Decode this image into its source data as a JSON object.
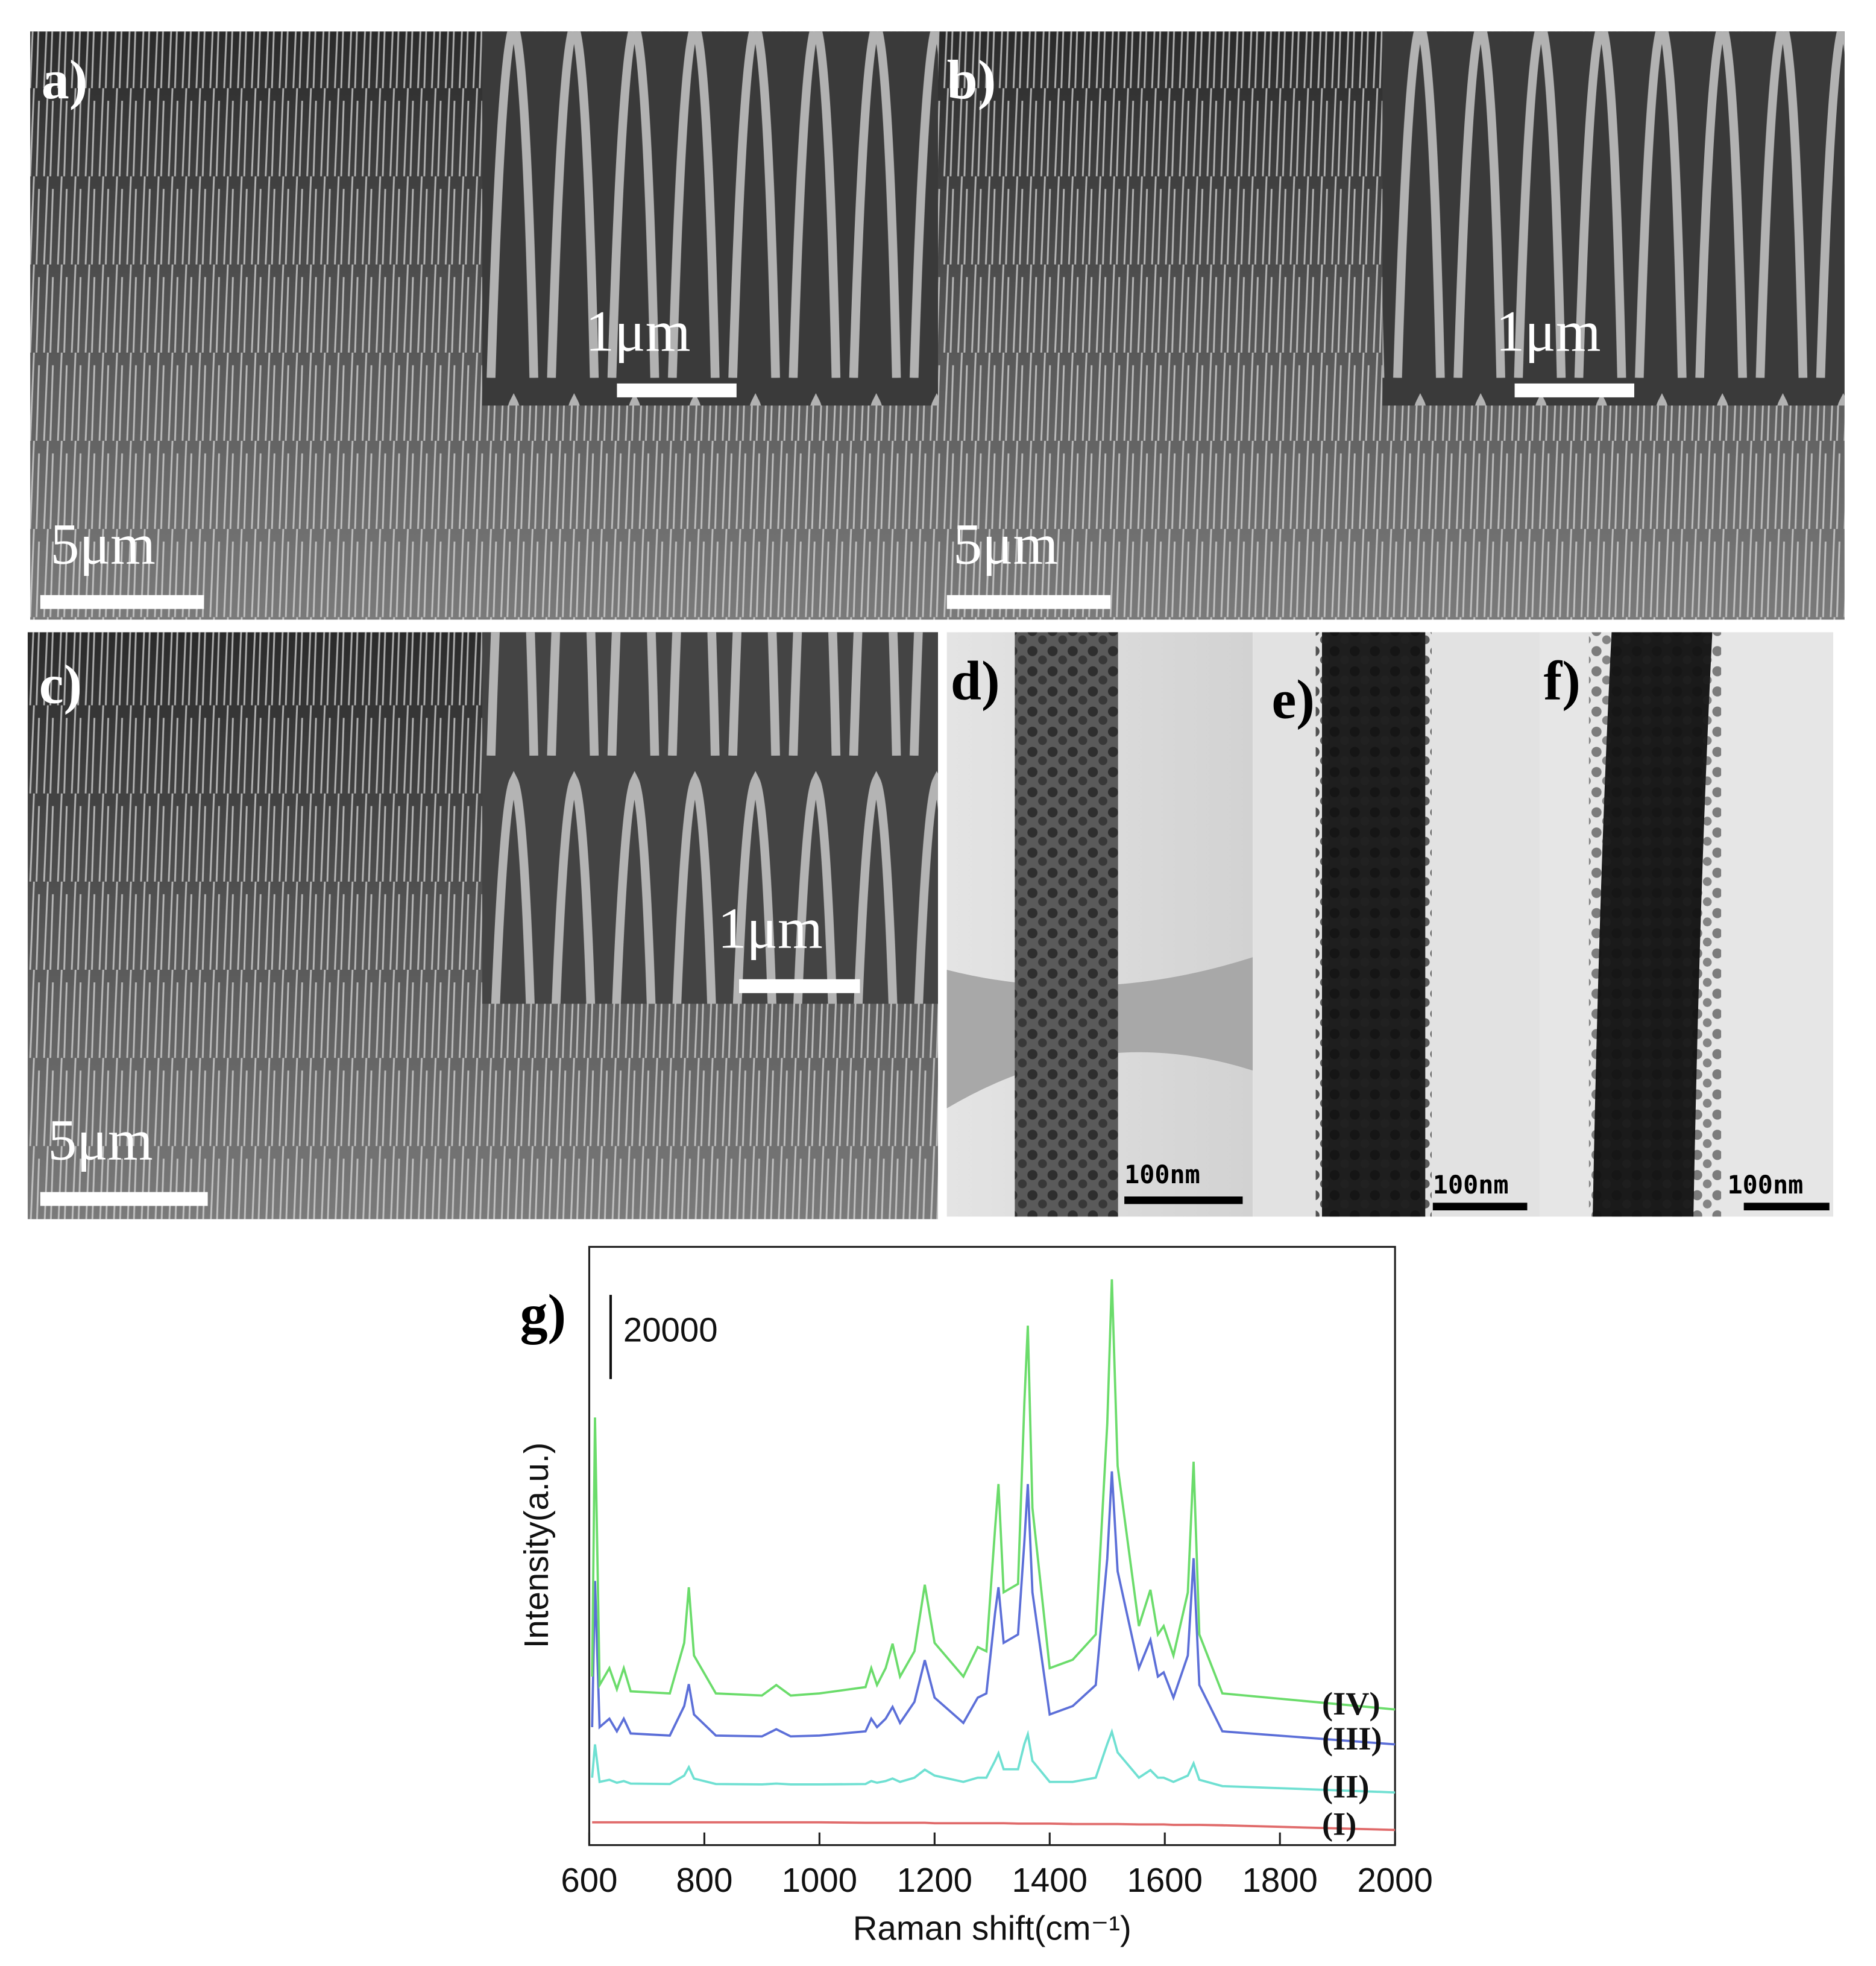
{
  "panels": [
    {
      "label": "a)",
      "scale_bars": [
        "5μm",
        "1μm"
      ]
    },
    {
      "label": "b)",
      "scale_bars": [
        "5μm",
        "1μm"
      ]
    },
    {
      "label": "c)",
      "scale_bars": [
        "5μm",
        "1μm"
      ]
    },
    {
      "label": "d)",
      "scale_bars": [
        "100nm"
      ]
    },
    {
      "label": "e)",
      "scale_bars": [
        "100nm"
      ]
    },
    {
      "label": "f)",
      "scale_bars": [
        "100nm"
      ]
    }
  ],
  "chart_data": {
    "type": "line",
    "panel_label": "g)",
    "x_label": "Raman shift(cm⁻¹)",
    "y_label": "Intensity(a.u.)",
    "scale_bar": 20000,
    "xlim": [
      600,
      2000
    ],
    "xticks": [
      600,
      800,
      1000,
      1200,
      1400,
      1600,
      1800,
      2000
    ],
    "ylim": [
      0,
      142000
    ],
    "x": [
      605,
      610,
      618,
      635,
      648,
      660,
      672,
      740,
      765,
      773,
      782,
      820,
      900,
      925,
      950,
      1000,
      1080,
      1090,
      1100,
      1115,
      1127,
      1140,
      1165,
      1183,
      1200,
      1250,
      1275,
      1290,
      1305,
      1311,
      1320,
      1345,
      1356,
      1362,
      1370,
      1400,
      1440,
      1480,
      1500,
      1508,
      1518,
      1555,
      1575,
      1588,
      1598,
      1615,
      1640,
      1650,
      1660,
      1700,
      2000
    ],
    "series": [
      {
        "name": "(I)",
        "color": "#e06a6a",
        "values": [
          5400,
          5400,
          5400,
          5400,
          5400,
          5400,
          5400,
          5400,
          5400,
          5400,
          5400,
          5400,
          5400,
          5400,
          5400,
          5400,
          5300,
          5300,
          5300,
          5300,
          5300,
          5300,
          5300,
          5300,
          5200,
          5200,
          5200,
          5200,
          5200,
          5200,
          5200,
          5100,
          5100,
          5100,
          5100,
          5100,
          5000,
          5000,
          5000,
          5000,
          5000,
          4900,
          4900,
          4900,
          4900,
          4800,
          4800,
          4800,
          4800,
          4700,
          3600
        ]
      },
      {
        "name": "(II)",
        "color": "#6fe0d2",
        "values": [
          16000,
          23900,
          15000,
          15500,
          14800,
          15200,
          14600,
          14500,
          16500,
          18500,
          15800,
          14500,
          14400,
          14600,
          14400,
          14400,
          14500,
          15200,
          14800,
          15200,
          15800,
          15000,
          16000,
          17900,
          16500,
          15000,
          16000,
          16000,
          20000,
          21800,
          18000,
          18000,
          24000,
          26300,
          20000,
          15000,
          15000,
          16000,
          24000,
          26900,
          22000,
          16000,
          17800,
          16000,
          16000,
          15000,
          16500,
          19400,
          15500,
          14000,
          12500
        ]
      },
      {
        "name": "(III)",
        "color": "#5c6fd8",
        "values": [
          28000,
          62700,
          28000,
          30000,
          27000,
          30000,
          26500,
          26000,
          33000,
          38200,
          31000,
          26000,
          25800,
          27500,
          25800,
          26000,
          27000,
          30000,
          28000,
          30000,
          32800,
          29000,
          34000,
          43900,
          35000,
          29000,
          35000,
          36000,
          55000,
          61200,
          48000,
          50000,
          72000,
          85700,
          60000,
          31000,
          33000,
          38000,
          68000,
          88700,
          65000,
          42000,
          48700,
          40000,
          41000,
          35000,
          45000,
          68100,
          38000,
          27000,
          23900
        ]
      },
      {
        "name": "(IV)",
        "color": "#6bdc6b",
        "values": [
          40000,
          101500,
          38000,
          42000,
          37000,
          42000,
          36500,
          36000,
          48000,
          61200,
          45000,
          36000,
          35500,
          38000,
          35500,
          36000,
          37500,
          42000,
          38000,
          42000,
          47800,
          40000,
          46000,
          61800,
          48000,
          40000,
          47000,
          46000,
          75000,
          85700,
          60000,
          62000,
          105000,
          123300,
          80000,
          42000,
          44000,
          50000,
          100000,
          134300,
          90000,
          52000,
          60600,
          50000,
          52000,
          45000,
          60000,
          91000,
          50000,
          36000,
          32200
        ]
      }
    ]
  }
}
